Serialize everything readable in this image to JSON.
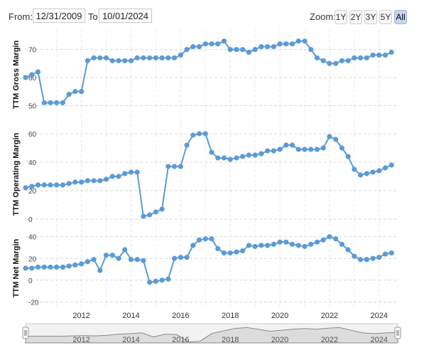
{
  "range_selector": {
    "from_label": "From:",
    "from_value": "12/31/2009",
    "to_label": "To:",
    "to_value": "10/01/2024",
    "zoom_label": "Zoom:",
    "zoom_buttons": [
      "1Y",
      "2Y",
      "3Y",
      "5Y",
      "All"
    ],
    "active_zoom": "All"
  },
  "colors": {
    "series": "#5b9bd5",
    "navigator_fill": "#dcdcdc",
    "navigator_line": "#8a8a8a"
  },
  "chart_data": [
    {
      "type": "line",
      "ylabel": "TTM Gross Margin",
      "yticks": [
        50,
        60,
        70
      ],
      "ylim": [
        45,
        77
      ],
      "x": [
        2009.75,
        2010.0,
        2010.25,
        2010.5,
        2010.75,
        2011.0,
        2011.25,
        2011.5,
        2011.75,
        2012.0,
        2012.25,
        2012.5,
        2012.75,
        2013.0,
        2013.25,
        2013.5,
        2013.75,
        2014.0,
        2014.25,
        2014.5,
        2014.75,
        2015.0,
        2015.25,
        2015.5,
        2015.75,
        2016.0,
        2016.25,
        2016.5,
        2016.75,
        2017.0,
        2017.25,
        2017.5,
        2017.75,
        2018.0,
        2018.25,
        2018.5,
        2018.75,
        2019.0,
        2019.25,
        2019.5,
        2019.75,
        2020.0,
        2020.25,
        2020.5,
        2020.75,
        2021.0,
        2021.25,
        2021.5,
        2021.75,
        2022.0,
        2022.25,
        2022.5,
        2022.75,
        2023.0,
        2023.25,
        2023.5,
        2023.75,
        2024.0,
        2024.25,
        2024.5
      ],
      "values": [
        60,
        61,
        62,
        51,
        51,
        51,
        51,
        54,
        55,
        55,
        66,
        67,
        67,
        67,
        66,
        66,
        66,
        66,
        67,
        67,
        67,
        67,
        67,
        67,
        67,
        68,
        70,
        71,
        71,
        72,
        72,
        72,
        73,
        70,
        70,
        70,
        69,
        70,
        71,
        71,
        71,
        72,
        72,
        72,
        73,
        73,
        70,
        67,
        66,
        65,
        65,
        66,
        66,
        67,
        67,
        67,
        68,
        68,
        68,
        69
      ],
      "grid": true
    },
    {
      "type": "line",
      "ylabel": "TTM Operating Margin",
      "yticks": [
        0,
        20,
        40,
        60
      ],
      "ylim": [
        -3,
        66
      ],
      "x": [
        2009.75,
        2010.0,
        2010.25,
        2010.5,
        2010.75,
        2011.0,
        2011.25,
        2011.5,
        2011.75,
        2012.0,
        2012.25,
        2012.5,
        2012.75,
        2013.0,
        2013.25,
        2013.5,
        2013.75,
        2014.0,
        2014.25,
        2014.5,
        2014.75,
        2015.0,
        2015.25,
        2015.5,
        2015.75,
        2016.0,
        2016.25,
        2016.5,
        2016.75,
        2017.0,
        2017.25,
        2017.5,
        2017.75,
        2018.0,
        2018.25,
        2018.5,
        2018.75,
        2019.0,
        2019.25,
        2019.5,
        2019.75,
        2020.0,
        2020.25,
        2020.5,
        2020.75,
        2021.0,
        2021.25,
        2021.5,
        2021.75,
        2022.0,
        2022.25,
        2022.5,
        2022.75,
        2023.0,
        2023.25,
        2023.5,
        2023.75,
        2024.0,
        2024.25,
        2024.5
      ],
      "values": [
        22,
        23,
        24,
        24,
        24,
        24,
        24,
        25,
        26,
        26,
        27,
        27,
        27,
        28,
        30,
        30,
        32,
        33,
        33,
        2,
        3,
        5,
        7,
        37,
        37,
        37,
        52,
        59,
        60,
        60,
        47,
        43,
        43,
        42,
        43,
        44,
        45,
        45,
        46,
        48,
        48,
        49,
        52,
        52,
        49,
        49,
        49,
        49,
        50,
        58,
        56,
        50,
        44,
        35,
        31,
        32,
        33,
        34,
        36,
        38
      ],
      "grid": true
    },
    {
      "type": "line",
      "ylabel": "TTM Net Margin",
      "xlabel": "",
      "yticks": [
        -20,
        0,
        20,
        40
      ],
      "ylim": [
        -25,
        47
      ],
      "x": [
        2009.75,
        2010.0,
        2010.25,
        2010.5,
        2010.75,
        2011.0,
        2011.25,
        2011.5,
        2011.75,
        2012.0,
        2012.25,
        2012.5,
        2012.75,
        2013.0,
        2013.25,
        2013.5,
        2013.75,
        2014.0,
        2014.25,
        2014.5,
        2014.75,
        2015.0,
        2015.25,
        2015.5,
        2015.75,
        2016.0,
        2016.25,
        2016.5,
        2016.75,
        2017.0,
        2017.25,
        2017.5,
        2017.75,
        2018.0,
        2018.25,
        2018.5,
        2018.75,
        2019.0,
        2019.25,
        2019.5,
        2019.75,
        2020.0,
        2020.25,
        2020.5,
        2020.75,
        2021.0,
        2021.25,
        2021.5,
        2021.75,
        2022.0,
        2022.25,
        2022.5,
        2022.75,
        2023.0,
        2023.25,
        2023.5,
        2023.75,
        2024.0,
        2024.25,
        2024.5
      ],
      "values": [
        11,
        11,
        12,
        12,
        12,
        12,
        12,
        13,
        14,
        15,
        17,
        19,
        9,
        23,
        23,
        20,
        28,
        19,
        19,
        18,
        -2,
        -1,
        0,
        1,
        20,
        21,
        21,
        32,
        37,
        38,
        38,
        29,
        25,
        25,
        26,
        27,
        32,
        31,
        32,
        32,
        33,
        35,
        35,
        33,
        32,
        31,
        33,
        35,
        37,
        40,
        38,
        33,
        28,
        22,
        19,
        19,
        20,
        21,
        24,
        25
      ],
      "grid": true
    }
  ],
  "x_axis": {
    "ticks": [
      2012,
      2014,
      2016,
      2018,
      2020,
      2022,
      2024
    ],
    "xlim": [
      2009.75,
      2024.75
    ]
  },
  "navigator": {
    "ticks": [
      2012,
      2014,
      2016,
      2018,
      2020,
      2022,
      2024
    ],
    "values": [
      12,
      12,
      12,
      12,
      13,
      14,
      13,
      15,
      18,
      20,
      22,
      10,
      18,
      17,
      -5,
      -3,
      20,
      28,
      35,
      38,
      33,
      27,
      30,
      33,
      35,
      33,
      36,
      38,
      30,
      22,
      20,
      22,
      24
    ]
  }
}
